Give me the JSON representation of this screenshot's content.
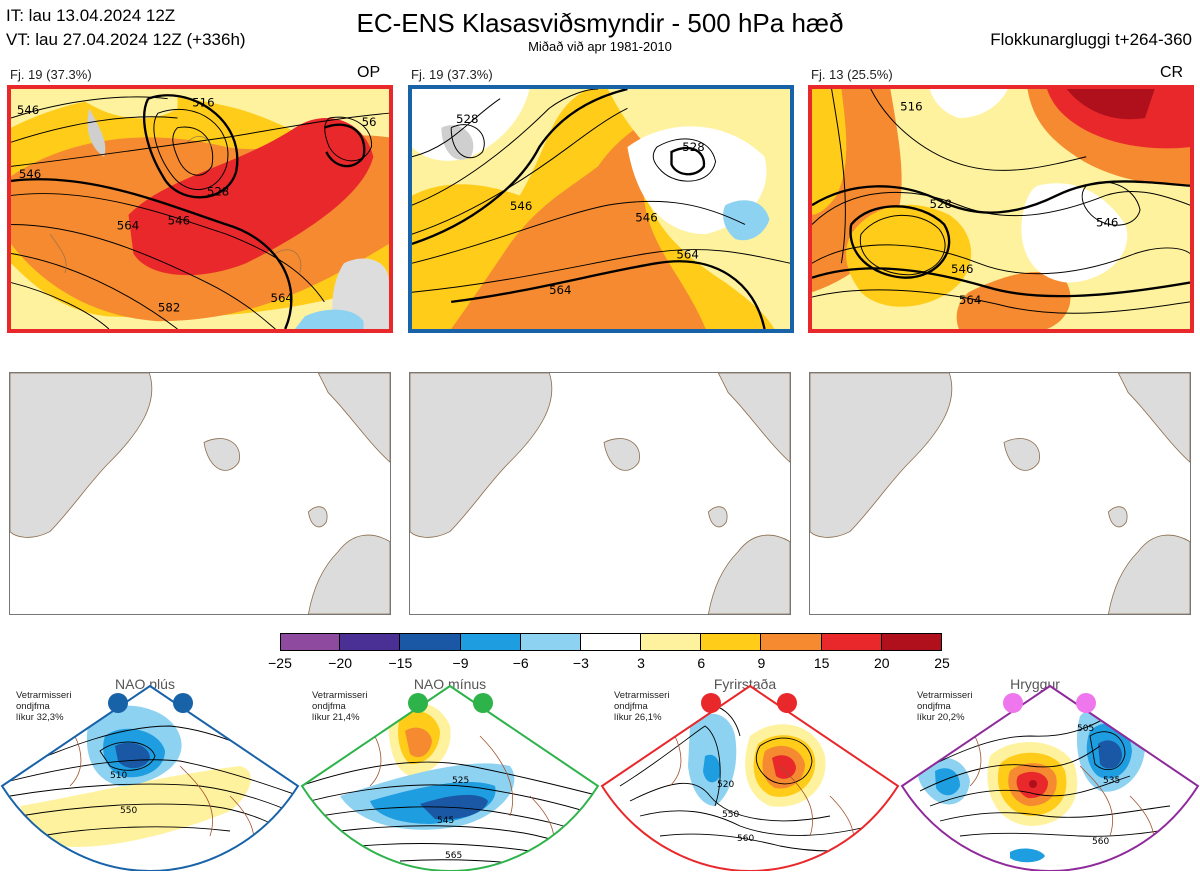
{
  "header": {
    "it_line": "IT: lau 13.04.2024 12Z",
    "vt_line": "VT: lau 27.04.2024 12Z  (+336h)",
    "title": "EC-ENS Klasasviðsmyndir - 500 hPa hæð",
    "subtitle": "Miðað við apr 1981-2010",
    "window": "Flokkunargluggi t+264-360"
  },
  "panels": [
    {
      "label": "Fj. 19 (37.3%)",
      "tag": "OP",
      "frame_color": "#e8282b",
      "contours": [
        "546",
        "516",
        "546",
        "528",
        "546",
        "564",
        "582",
        "564",
        "56"
      ]
    },
    {
      "label": "Fj. 19 (37.3%)",
      "tag": "",
      "frame_color": "#1862a8",
      "contours": [
        "528",
        "528",
        "546",
        "546",
        "564",
        "564"
      ]
    },
    {
      "label": "Fj. 13 (25.5%)",
      "tag": "CR",
      "frame_color": "#e8282b",
      "contours": [
        "528",
        "546",
        "546",
        "564",
        "516"
      ]
    }
  ],
  "colorbar": {
    "ticks": [
      "−25",
      "−20",
      "−15",
      "−9",
      "−6",
      "−3",
      "3",
      "6",
      "9",
      "15",
      "20",
      "25"
    ],
    "colors": [
      "#8e4a9e",
      "#4a2f94",
      "#1a58a6",
      "#1e9ee0",
      "#8ed2f2",
      "#ffffff",
      "#fff29e",
      "#ffcc1a",
      "#f58a30",
      "#e8282b",
      "#b0101c"
    ]
  },
  "regimes": [
    {
      "name": "NAO plús",
      "note_line1": "Vetrarmisseri",
      "note_line2": "ondjfma",
      "note_line3": "líkur 32,3%",
      "dot_color": "#1862a8",
      "border_color": "#1862a8",
      "contours": [
        "510",
        "550"
      ]
    },
    {
      "name": "NAO mínus",
      "note_line1": "Vetrarmisseri",
      "note_line2": "ondjfma",
      "note_line3": "líkur 21,4%",
      "dot_color": "#2db34a",
      "border_color": "#2db34a",
      "contours": [
        "525",
        "545",
        "565"
      ]
    },
    {
      "name": "Fyrirstaða",
      "note_line1": "Vetrarmisseri",
      "note_line2": "ondjfma",
      "note_line3": "líkur 26,1%",
      "dot_color": "#e8282b",
      "border_color": "#e8282b",
      "contours": [
        "520",
        "550",
        "560"
      ]
    },
    {
      "name": "Hryggur",
      "note_line1": "Vetrarmisseri",
      "note_line2": "ondjfma",
      "note_line3": "líkur 20,2%",
      "dot_color": "#ee77ee",
      "border_color": "#8e2a9a",
      "contours": [
        "505",
        "535",
        "560"
      ]
    }
  ]
}
